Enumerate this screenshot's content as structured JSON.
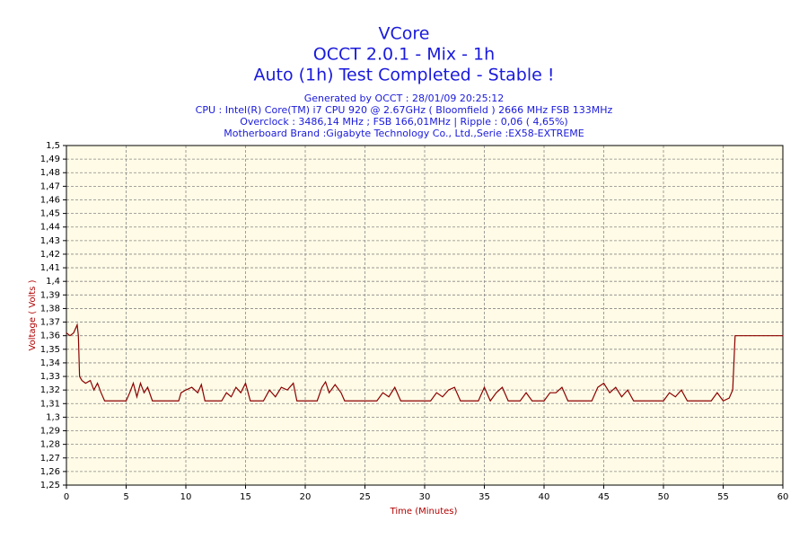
{
  "chart_data": {
    "type": "line",
    "title": [
      "VCore",
      "OCCT 2.0.1 - Mix - 1h",
      "Auto (1h) Test Completed - Stable !"
    ],
    "subtitle": [
      "Generated by OCCT : 28/01/09 20:25:12",
      "CPU : Intel(R) Core(TM) i7 CPU 920 @ 2.67GHz ( Bloomfield ) 2666 MHz FSB 133MHz",
      "Overclock : 3486,14 MHz ; FSB 166,01MHz | Ripple : 0,06 ( 4,65%)",
      "Motherboard Brand :Gigabyte Technology Co., Ltd.,Serie :EX58-EXTREME"
    ],
    "x_label": "Time (Minutes)",
    "y_label": "Voltage ( Volts )",
    "color": "#8b0000",
    "grid": true,
    "xlim": [
      0,
      60
    ],
    "xticks": [
      0,
      5,
      10,
      15,
      20,
      25,
      30,
      35,
      40,
      45,
      50,
      55,
      60
    ],
    "ylim": [
      1.25,
      1.5
    ],
    "yticks": [
      {
        "value": 1.25,
        "label": "1,25"
      },
      {
        "value": 1.26,
        "label": "1,26"
      },
      {
        "value": 1.27,
        "label": "1,27"
      },
      {
        "value": 1.28,
        "label": "1,28"
      },
      {
        "value": 1.29,
        "label": "1,29"
      },
      {
        "value": 1.3,
        "label": "1,3"
      },
      {
        "value": 1.31,
        "label": "1,31"
      },
      {
        "value": 1.32,
        "label": "1,32"
      },
      {
        "value": 1.33,
        "label": "1,33"
      },
      {
        "value": 1.34,
        "label": "1,34"
      },
      {
        "value": 1.35,
        "label": "1,35"
      },
      {
        "value": 1.36,
        "label": "1,36"
      },
      {
        "value": 1.37,
        "label": "1,37"
      },
      {
        "value": 1.38,
        "label": "1,38"
      },
      {
        "value": 1.39,
        "label": "1,39"
      },
      {
        "value": 1.4,
        "label": "1,4"
      },
      {
        "value": 1.41,
        "label": "1,41"
      },
      {
        "value": 1.42,
        "label": "1,42"
      },
      {
        "value": 1.43,
        "label": "1,43"
      },
      {
        "value": 1.44,
        "label": "1,44"
      },
      {
        "value": 1.45,
        "label": "1,45"
      },
      {
        "value": 1.46,
        "label": "1,46"
      },
      {
        "value": 1.47,
        "label": "1,47"
      },
      {
        "value": 1.48,
        "label": "1,48"
      },
      {
        "value": 1.49,
        "label": "1,49"
      },
      {
        "value": 1.5,
        "label": "1,5"
      }
    ],
    "x": [
      0,
      0.3,
      0.6,
      0.9,
      1.0,
      1.1,
      1.3,
      1.6,
      2.0,
      2.3,
      2.6,
      2.9,
      3.2,
      5.0,
      5.3,
      5.6,
      5.9,
      6.2,
      6.5,
      6.8,
      7.2,
      9.4,
      9.6,
      10,
      10.5,
      11,
      11.3,
      11.6,
      13,
      13.4,
      13.8,
      14.2,
      14.6,
      15,
      15.4,
      16.5,
      17,
      17.5,
      18,
      18.5,
      19,
      19.3,
      21,
      21.4,
      21.7,
      22,
      22.5,
      23,
      23.3,
      26,
      26.5,
      27,
      27.5,
      28,
      30.5,
      31,
      31.5,
      32,
      32.5,
      33,
      34.5,
      35,
      35.5,
      36,
      36.5,
      37,
      38,
      38.5,
      39,
      40,
      40.5,
      41,
      41.5,
      42,
      44,
      44.5,
      45,
      45.5,
      46,
      46.5,
      47,
      47.5,
      50,
      50.5,
      51,
      51.5,
      52,
      54,
      54.5,
      55,
      55.5,
      55.8,
      56,
      60
    ],
    "values": [
      1.362,
      1.36,
      1.362,
      1.368,
      1.36,
      1.33,
      1.327,
      1.325,
      1.327,
      1.32,
      1.325,
      1.318,
      1.312,
      1.312,
      1.318,
      1.325,
      1.315,
      1.325,
      1.318,
      1.322,
      1.312,
      1.312,
      1.318,
      1.32,
      1.322,
      1.318,
      1.324,
      1.312,
      1.312,
      1.318,
      1.315,
      1.322,
      1.318,
      1.325,
      1.312,
      1.312,
      1.32,
      1.315,
      1.322,
      1.32,
      1.325,
      1.312,
      1.312,
      1.322,
      1.326,
      1.318,
      1.324,
      1.318,
      1.312,
      1.312,
      1.318,
      1.315,
      1.322,
      1.312,
      1.312,
      1.318,
      1.315,
      1.32,
      1.322,
      1.312,
      1.312,
      1.322,
      1.312,
      1.318,
      1.322,
      1.312,
      1.312,
      1.318,
      1.312,
      1.312,
      1.318,
      1.318,
      1.322,
      1.312,
      1.312,
      1.322,
      1.325,
      1.318,
      1.322,
      1.315,
      1.32,
      1.312,
      1.312,
      1.318,
      1.315,
      1.32,
      1.312,
      1.312,
      1.318,
      1.312,
      1.314,
      1.32,
      1.36,
      1.36
    ]
  }
}
